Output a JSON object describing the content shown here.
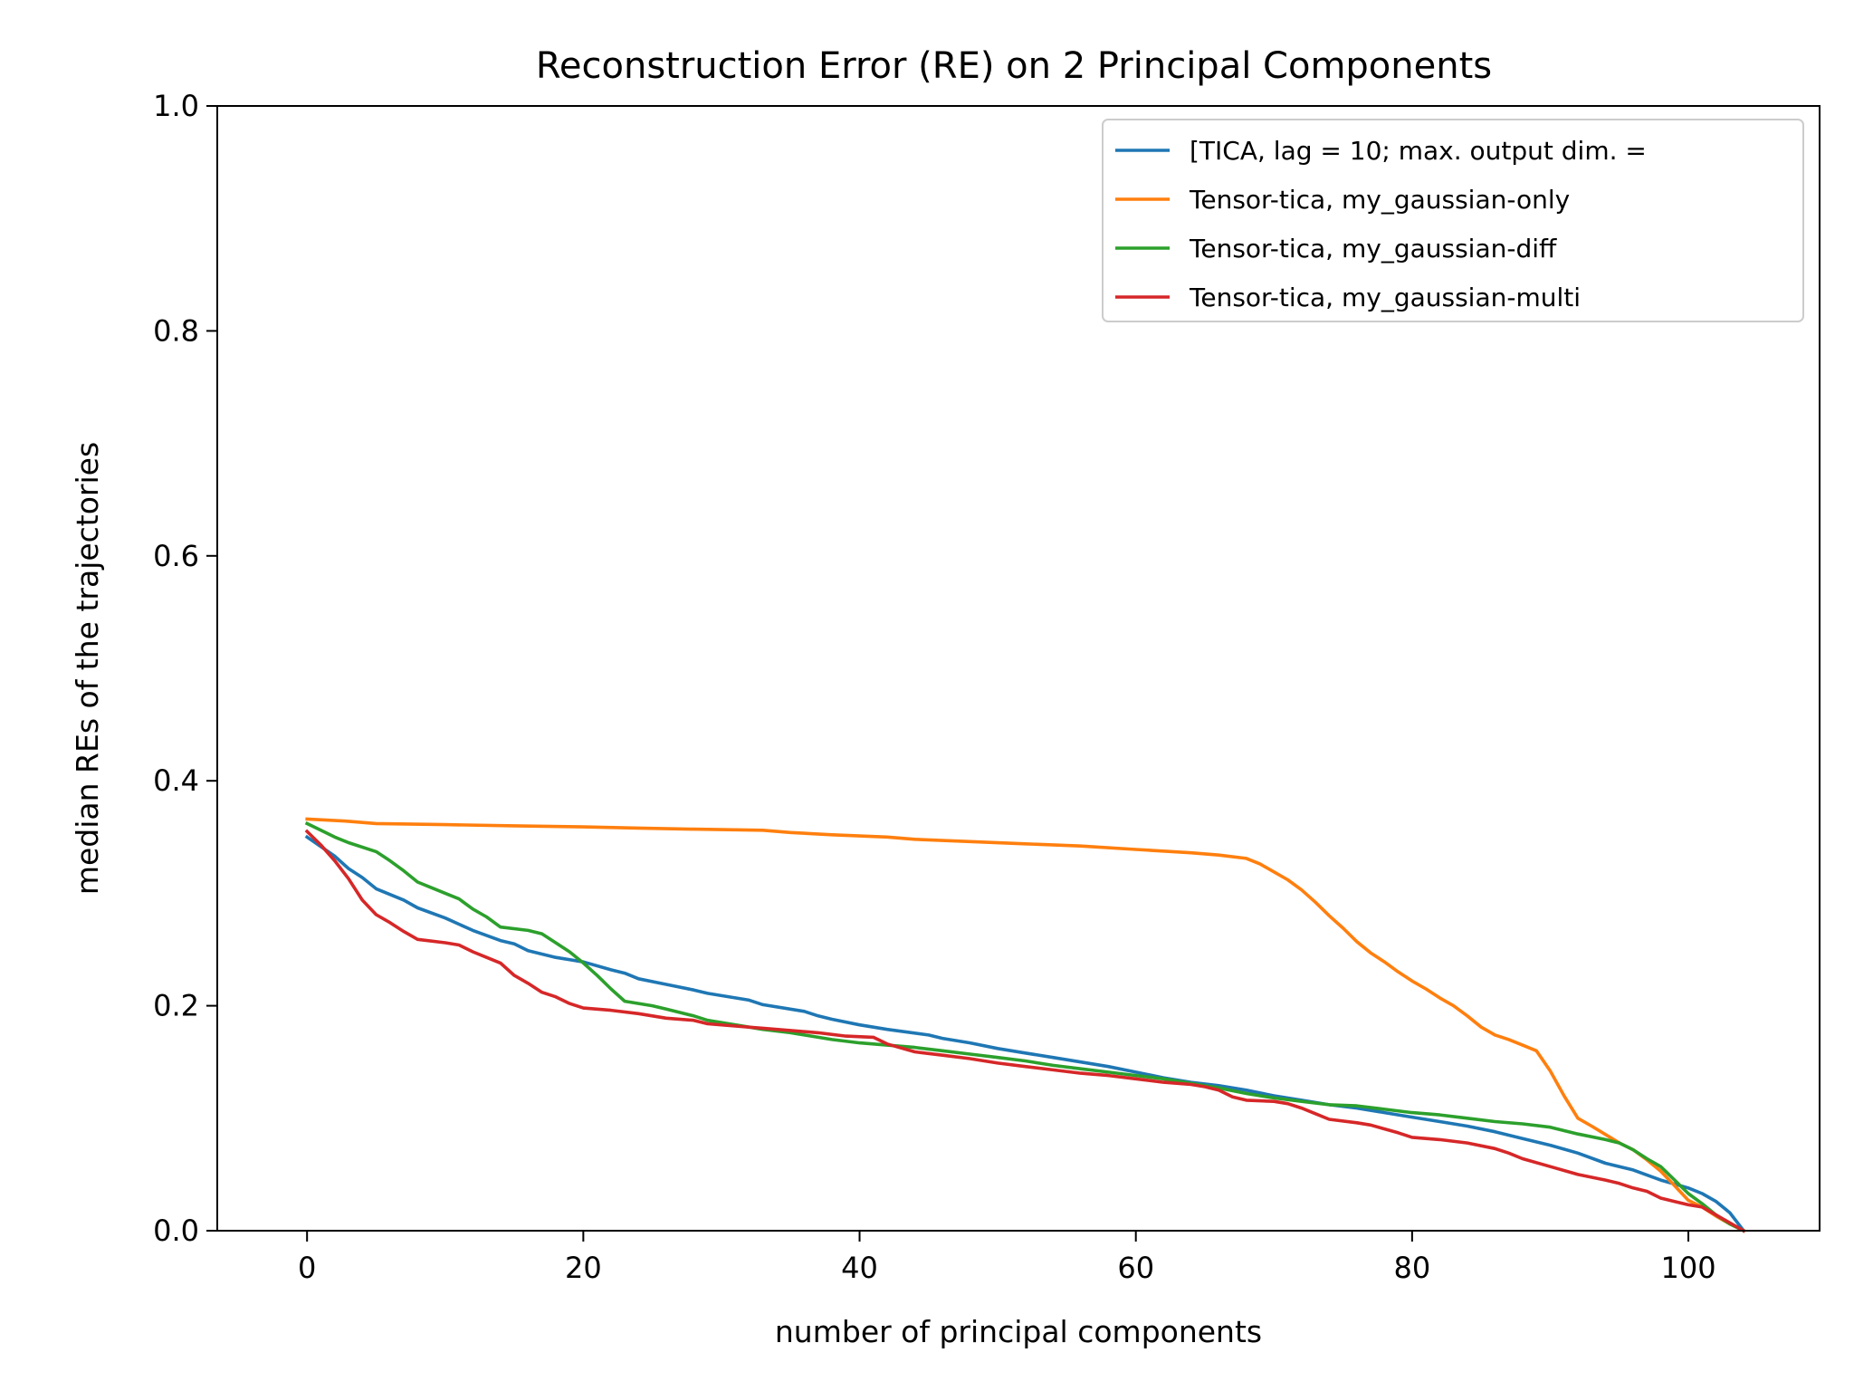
{
  "chart_data": {
    "type": "line",
    "title": "Reconstruction Error (RE) on 2 Principal Components",
    "xlabel": "number of principal components",
    "ylabel": "median REs of the trajectories",
    "xlim": [
      -6.5,
      109.5
    ],
    "ylim": [
      0.0,
      1.0
    ],
    "xticks": [
      0,
      20,
      40,
      60,
      80,
      100
    ],
    "yticks": [
      "0.0",
      "0.2",
      "0.4",
      "0.6",
      "0.8",
      "1.0"
    ],
    "grid": false,
    "legend_position": "top-right",
    "series": [
      {
        "name": "[TICA, lag = 10; max. output dim. =",
        "color": "#1f77b4",
        "points": [
          [
            0,
            0.35
          ],
          [
            2,
            0.333
          ],
          [
            3,
            0.322
          ],
          [
            4,
            0.314
          ],
          [
            5,
            0.304
          ],
          [
            7,
            0.294
          ],
          [
            8,
            0.287
          ],
          [
            10,
            0.278
          ],
          [
            12,
            0.267
          ],
          [
            14,
            0.258
          ],
          [
            15,
            0.255
          ],
          [
            16,
            0.249
          ],
          [
            18,
            0.243
          ],
          [
            20,
            0.239
          ],
          [
            22,
            0.232
          ],
          [
            23,
            0.229
          ],
          [
            24,
            0.224
          ],
          [
            26,
            0.219
          ],
          [
            28,
            0.214
          ],
          [
            29,
            0.211
          ],
          [
            30,
            0.209
          ],
          [
            32,
            0.205
          ],
          [
            33,
            0.201
          ],
          [
            36,
            0.195
          ],
          [
            37,
            0.191
          ],
          [
            38,
            0.188
          ],
          [
            40,
            0.183
          ],
          [
            41,
            0.181
          ],
          [
            42,
            0.179
          ],
          [
            45,
            0.174
          ],
          [
            46,
            0.171
          ],
          [
            48,
            0.167
          ],
          [
            50,
            0.162
          ],
          [
            52,
            0.158
          ],
          [
            54,
            0.154
          ],
          [
            56,
            0.15
          ],
          [
            58,
            0.146
          ],
          [
            60,
            0.141
          ],
          [
            62,
            0.136
          ],
          [
            64,
            0.132
          ],
          [
            66,
            0.129
          ],
          [
            68,
            0.125
          ],
          [
            70,
            0.12
          ],
          [
            72,
            0.116
          ],
          [
            74,
            0.112
          ],
          [
            76,
            0.109
          ],
          [
            78,
            0.105
          ],
          [
            80,
            0.101
          ],
          [
            82,
            0.097
          ],
          [
            84,
            0.093
          ],
          [
            86,
            0.088
          ],
          [
            88,
            0.082
          ],
          [
            90,
            0.076
          ],
          [
            92,
            0.069
          ],
          [
            94,
            0.06
          ],
          [
            96,
            0.054
          ],
          [
            98,
            0.045
          ],
          [
            100,
            0.038
          ],
          [
            101,
            0.033
          ],
          [
            102,
            0.026
          ],
          [
            103,
            0.016
          ],
          [
            104,
            0.0
          ]
        ]
      },
      {
        "name": "Tensor-tica, my_gaussian-only",
        "color": "#ff7f0e",
        "points": [
          [
            0,
            0.366
          ],
          [
            3,
            0.364
          ],
          [
            5,
            0.362
          ],
          [
            10,
            0.361
          ],
          [
            15,
            0.36
          ],
          [
            20,
            0.359
          ],
          [
            24,
            0.358
          ],
          [
            28,
            0.357
          ],
          [
            33,
            0.356
          ],
          [
            35,
            0.354
          ],
          [
            38,
            0.352
          ],
          [
            42,
            0.35
          ],
          [
            44,
            0.348
          ],
          [
            48,
            0.346
          ],
          [
            52,
            0.344
          ],
          [
            56,
            0.342
          ],
          [
            60,
            0.339
          ],
          [
            64,
            0.336
          ],
          [
            66,
            0.334
          ],
          [
            68,
            0.331
          ],
          [
            69,
            0.326
          ],
          [
            70,
            0.319
          ],
          [
            71,
            0.312
          ],
          [
            72,
            0.303
          ],
          [
            73,
            0.292
          ],
          [
            74,
            0.28
          ],
          [
            75,
            0.269
          ],
          [
            76,
            0.257
          ],
          [
            77,
            0.247
          ],
          [
            78,
            0.239
          ],
          [
            79,
            0.23
          ],
          [
            80,
            0.222
          ],
          [
            81,
            0.215
          ],
          [
            82,
            0.207
          ],
          [
            83,
            0.2
          ],
          [
            84,
            0.191
          ],
          [
            85,
            0.181
          ],
          [
            86,
            0.174
          ],
          [
            87,
            0.17
          ],
          [
            88,
            0.165
          ],
          [
            89,
            0.16
          ],
          [
            90,
            0.142
          ],
          [
            91,
            0.12
          ],
          [
            92,
            0.1
          ],
          [
            93,
            0.093
          ],
          [
            95,
            0.078
          ],
          [
            96,
            0.072
          ],
          [
            97,
            0.063
          ],
          [
            98,
            0.053
          ],
          [
            99,
            0.04
          ],
          [
            100,
            0.027
          ],
          [
            101,
            0.021
          ],
          [
            102,
            0.013
          ],
          [
            103,
            0.006
          ],
          [
            104,
            0.0
          ]
        ]
      },
      {
        "name": "Tensor-tica, my_gaussian-diff",
        "color": "#2ca02c",
        "points": [
          [
            0,
            0.362
          ],
          [
            1,
            0.356
          ],
          [
            2,
            0.35
          ],
          [
            3,
            0.345
          ],
          [
            5,
            0.337
          ],
          [
            6,
            0.329
          ],
          [
            7,
            0.32
          ],
          [
            8,
            0.31
          ],
          [
            9,
            0.305
          ],
          [
            10,
            0.3
          ],
          [
            11,
            0.295
          ],
          [
            12,
            0.286
          ],
          [
            13,
            0.279
          ],
          [
            14,
            0.27
          ],
          [
            16,
            0.267
          ],
          [
            17,
            0.264
          ],
          [
            18,
            0.256
          ],
          [
            19,
            0.248
          ],
          [
            20,
            0.238
          ],
          [
            21,
            0.227
          ],
          [
            22,
            0.215
          ],
          [
            23,
            0.204
          ],
          [
            25,
            0.2
          ],
          [
            26,
            0.197
          ],
          [
            28,
            0.191
          ],
          [
            29,
            0.187
          ],
          [
            31,
            0.183
          ],
          [
            33,
            0.179
          ],
          [
            35,
            0.176
          ],
          [
            36,
            0.174
          ],
          [
            38,
            0.17
          ],
          [
            40,
            0.167
          ],
          [
            42,
            0.165
          ],
          [
            44,
            0.163
          ],
          [
            46,
            0.16
          ],
          [
            48,
            0.157
          ],
          [
            50,
            0.154
          ],
          [
            52,
            0.151
          ],
          [
            54,
            0.147
          ],
          [
            56,
            0.144
          ],
          [
            58,
            0.141
          ],
          [
            60,
            0.138
          ],
          [
            62,
            0.135
          ],
          [
            64,
            0.131
          ],
          [
            66,
            0.127
          ],
          [
            68,
            0.122
          ],
          [
            70,
            0.118
          ],
          [
            72,
            0.115
          ],
          [
            74,
            0.112
          ],
          [
            76,
            0.111
          ],
          [
            78,
            0.108
          ],
          [
            80,
            0.105
          ],
          [
            82,
            0.103
          ],
          [
            84,
            0.1
          ],
          [
            86,
            0.097
          ],
          [
            88,
            0.095
          ],
          [
            90,
            0.092
          ],
          [
            92,
            0.086
          ],
          [
            94,
            0.081
          ],
          [
            95,
            0.078
          ],
          [
            96,
            0.072
          ],
          [
            97,
            0.064
          ],
          [
            98,
            0.057
          ],
          [
            99,
            0.045
          ],
          [
            100,
            0.033
          ],
          [
            101,
            0.024
          ],
          [
            102,
            0.014
          ],
          [
            103,
            0.006
          ],
          [
            104,
            0.0
          ]
        ]
      },
      {
        "name": "Tensor-tica, my_gaussian-multi",
        "color": "#d62728",
        "points": [
          [
            0,
            0.355
          ],
          [
            1,
            0.343
          ],
          [
            2,
            0.329
          ],
          [
            3,
            0.313
          ],
          [
            4,
            0.294
          ],
          [
            5,
            0.281
          ],
          [
            6,
            0.274
          ],
          [
            7,
            0.266
          ],
          [
            8,
            0.259
          ],
          [
            10,
            0.256
          ],
          [
            11,
            0.254
          ],
          [
            12,
            0.248
          ],
          [
            13,
            0.243
          ],
          [
            14,
            0.238
          ],
          [
            15,
            0.227
          ],
          [
            16,
            0.22
          ],
          [
            17,
            0.212
          ],
          [
            18,
            0.208
          ],
          [
            19,
            0.202
          ],
          [
            20,
            0.198
          ],
          [
            22,
            0.196
          ],
          [
            24,
            0.193
          ],
          [
            26,
            0.189
          ],
          [
            28,
            0.187
          ],
          [
            29,
            0.184
          ],
          [
            31,
            0.182
          ],
          [
            33,
            0.18
          ],
          [
            35,
            0.178
          ],
          [
            37,
            0.176
          ],
          [
            39,
            0.173
          ],
          [
            41,
            0.172
          ],
          [
            42,
            0.166
          ],
          [
            44,
            0.159
          ],
          [
            46,
            0.156
          ],
          [
            48,
            0.153
          ],
          [
            50,
            0.149
          ],
          [
            52,
            0.146
          ],
          [
            54,
            0.143
          ],
          [
            56,
            0.14
          ],
          [
            58,
            0.138
          ],
          [
            60,
            0.135
          ],
          [
            62,
            0.132
          ],
          [
            64,
            0.13
          ],
          [
            65,
            0.128
          ],
          [
            66,
            0.125
          ],
          [
            67,
            0.119
          ],
          [
            68,
            0.116
          ],
          [
            70,
            0.115
          ],
          [
            71,
            0.113
          ],
          [
            72,
            0.109
          ],
          [
            73,
            0.104
          ],
          [
            74,
            0.099
          ],
          [
            76,
            0.096
          ],
          [
            77,
            0.094
          ],
          [
            79,
            0.087
          ],
          [
            80,
            0.083
          ],
          [
            82,
            0.081
          ],
          [
            84,
            0.078
          ],
          [
            86,
            0.073
          ],
          [
            87,
            0.069
          ],
          [
            88,
            0.064
          ],
          [
            90,
            0.057
          ],
          [
            92,
            0.05
          ],
          [
            94,
            0.045
          ],
          [
            95,
            0.042
          ],
          [
            96,
            0.038
          ],
          [
            97,
            0.035
          ],
          [
            98,
            0.029
          ],
          [
            99,
            0.026
          ],
          [
            100,
            0.023
          ],
          [
            101,
            0.021
          ],
          [
            102,
            0.014
          ],
          [
            103,
            0.007
          ],
          [
            104,
            0.0
          ]
        ]
      }
    ]
  }
}
